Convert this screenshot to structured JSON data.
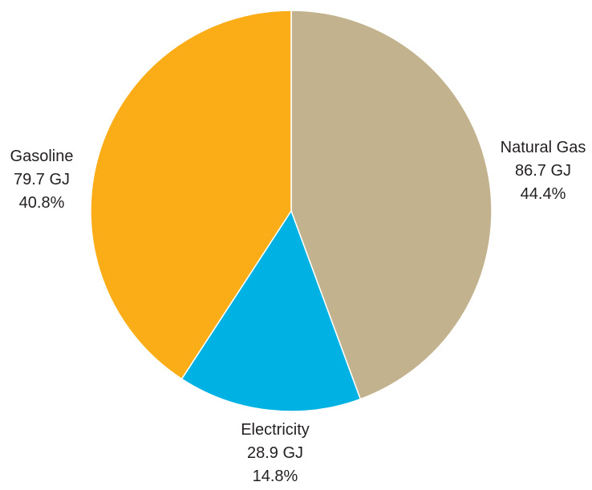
{
  "chart_data": {
    "type": "pie",
    "start": "12 o'clock",
    "direction": "clockwise",
    "slices": [
      {
        "label": "Natural Gas",
        "value": 86.7,
        "value_text": "86.7 GJ",
        "percent": 44.4,
        "percent_text": "44.4%",
        "color": "#c2b28d"
      },
      {
        "label": "Electricity",
        "value": 28.9,
        "value_text": "28.9 GJ",
        "percent": 14.8,
        "percent_text": "14.8%",
        "color": "#00b2e3"
      },
      {
        "label": "Gasoline",
        "value": 79.7,
        "value_text": "79.7 GJ",
        "percent": 40.8,
        "percent_text": "40.8%",
        "color": "#fbad18"
      }
    ],
    "slice_border_color": "#ffffff",
    "label_color": "#231f20"
  }
}
